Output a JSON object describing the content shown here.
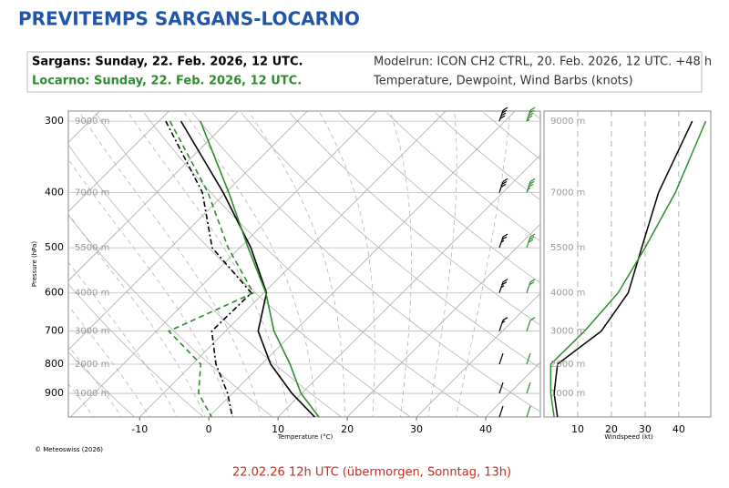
{
  "header": {
    "title": "PREVITEMPS SARGANS-LOCARNO",
    "line1": "Sargans: Sunday, 22. Feb. 2026, 12 UTC.",
    "line2": "Locarno: Sunday, 22. Feb. 2026, 12 UTC.",
    "modelrun": "Modelrun: ICON CH2 CTRL, 20. Feb. 2026, 12 UTC. +48 h",
    "variables": "Temperature, Dewpoint, Wind Barbs (knots)"
  },
  "chart_data": [
    {
      "type": "skewt",
      "x_label": "Temperature (°C)",
      "y_label": "Pressure (hPa)",
      "y": [
        300,
        400,
        500,
        600,
        700,
        800,
        900,
        990
      ],
      "series": [
        {
          "color": "#000000",
          "dash": "solid",
          "values": [
            -46.8,
            -30.4,
            -18.4,
            -9.6,
            -5.3,
            1.3,
            8.6,
            15.3
          ]
        },
        {
          "color": "#000000",
          "dash": "dashdot",
          "values": [
            -49,
            -33.4,
            -24,
            -11.8,
            -12,
            -6.6,
            -0.7,
            3.4
          ]
        },
        {
          "color": "#2e8b2e",
          "dash": "solid",
          "values": [
            -44,
            -29.6,
            -18.8,
            -9.7,
            -3,
            4.1,
            9.9,
            15.9
          ]
        },
        {
          "color": "#2e8b2e",
          "dash": "dashed",
          "values": [
            -48.4,
            -32.6,
            -21.7,
            -11.5,
            -18.2,
            -8.8,
            -4.9,
            0.4
          ]
        }
      ],
      "xlim": [
        -20.3,
        47.9
      ],
      "xticks": [
        -10,
        0,
        10,
        20,
        30,
        40
      ],
      "ylim": [
        990,
        288
      ],
      "yticks": [
        300,
        400,
        500,
        600,
        700,
        800,
        900
      ],
      "log_y": true,
      "skew_deg": 45,
      "height_ticks": [
        {
          "value": 300,
          "label": "9000 m"
        },
        {
          "value": 400,
          "label": "7000 m"
        },
        {
          "value": 500,
          "label": "5500 m"
        },
        {
          "value": 600,
          "label": "4000 m"
        },
        {
          "value": 700,
          "label": "3000 m"
        },
        {
          "value": 800,
          "label": "2000 m"
        },
        {
          "value": 900,
          "label": "1000 m"
        }
      ]
    },
    {
      "type": "wind",
      "x_label": "Windspeed (kt)",
      "y": [
        300,
        400,
        500,
        600,
        700,
        800,
        900,
        990
      ],
      "series": [
        {
          "color": "#000000",
          "values": [
            44,
            34,
            29,
            25,
            17,
            4,
            3,
            4
          ]
        },
        {
          "color": "#2e8b2e",
          "values": [
            48,
            39,
            30,
            22,
            12,
            2,
            2,
            3
          ]
        }
      ],
      "xlim": [
        0,
        49.5
      ],
      "xticks": [
        10,
        20,
        30,
        40
      ],
      "ylim": [
        990,
        288
      ],
      "log_y": true,
      "grid": true
    }
  ],
  "footer": {
    "copyright": "© Meteoswiss (2026)",
    "caption": "22.02.26 12h UTC (übermorgen, Sonntag, 13h)"
  }
}
